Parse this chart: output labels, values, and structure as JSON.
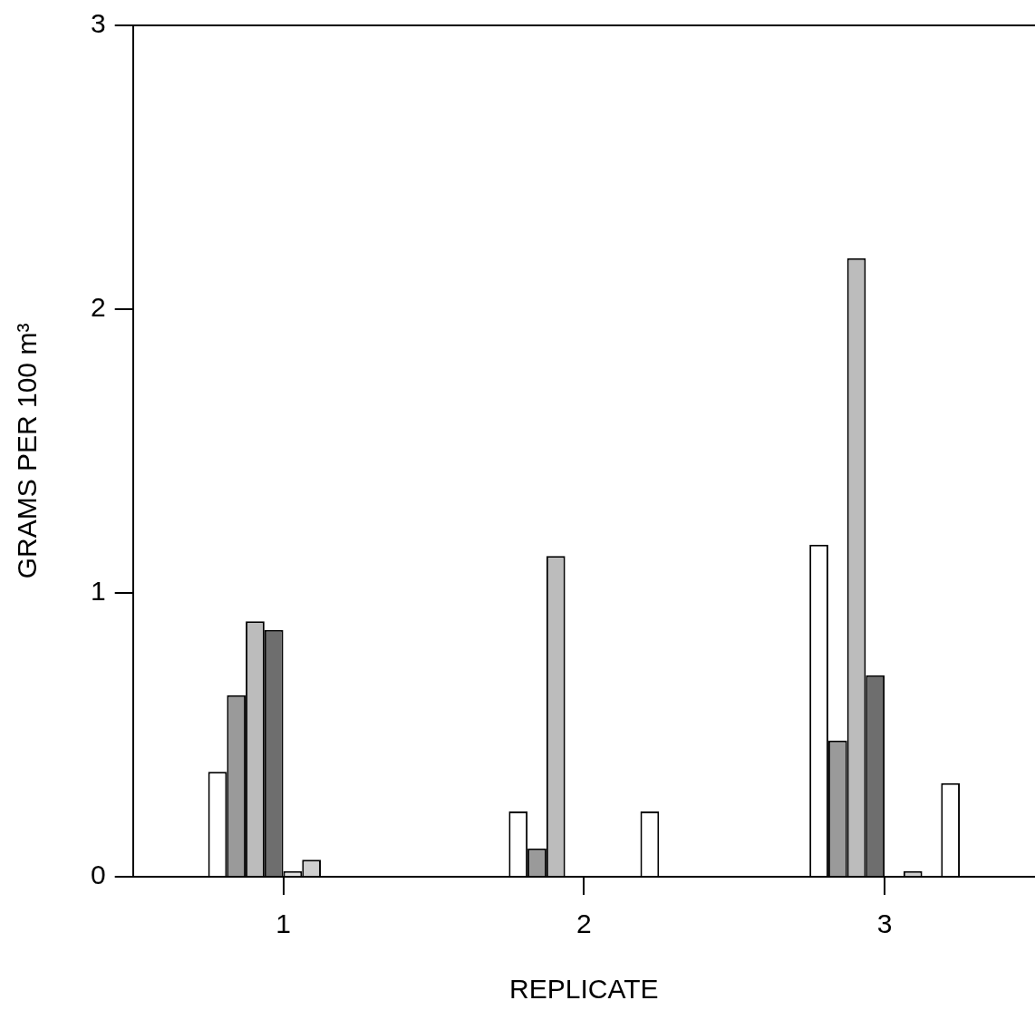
{
  "chart_data": {
    "type": "bar",
    "xlabel": "REPLICATE",
    "ylabel": "GRAMS PER 100 m³",
    "categories": [
      "1",
      "2",
      "3"
    ],
    "series": [
      {
        "color": "#ffffff",
        "values": [
          0.37,
          0.23,
          1.17
        ]
      },
      {
        "color": "#9a9a9a",
        "values": [
          0.64,
          0.1,
          0.48
        ]
      },
      {
        "color": "#bcbcbc",
        "values": [
          0.9,
          1.13,
          2.18
        ]
      },
      {
        "color": "#6e6e6e",
        "values": [
          0.87,
          null,
          0.71
        ]
      },
      {
        "color": "#e2e2e2",
        "values": [
          0.02,
          null,
          null
        ]
      },
      {
        "color": "#cfcfcf",
        "values": [
          0.06,
          null,
          0.02
        ]
      },
      {
        "color": "#ffffff",
        "values": [
          null,
          null,
          null
        ]
      },
      {
        "color": "#ffffff",
        "values": [
          null,
          0.23,
          0.33
        ]
      }
    ],
    "ylim": [
      0,
      3
    ],
    "yticks": [
      0,
      1,
      2,
      3
    ],
    "grid": false,
    "legend": false
  }
}
